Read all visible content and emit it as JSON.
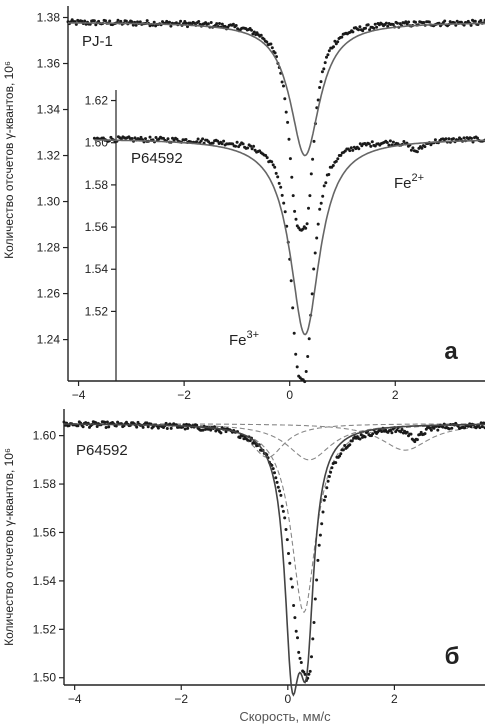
{
  "chart_data": [
    {
      "panel": "а",
      "type": "scatter",
      "xlim": [
        -4.2,
        3.7
      ],
      "x_ticks": [
        "-4",
        "-2",
        "0",
        "2"
      ],
      "x_tick_values": [
        -4,
        -2,
        0,
        2
      ],
      "ylabel": "Количество отсчетов γ-квантов, 10⁶",
      "outer_axis": {
        "ylim": [
          1.222,
          1.385
        ],
        "ticks": [
          "1.38",
          "1.36",
          "1.34",
          "1.32",
          "1.30",
          "1.28",
          "1.26",
          "1.24"
        ],
        "tick_values": [
          1.38,
          1.36,
          1.34,
          1.32,
          1.3,
          1.28,
          1.26,
          1.24
        ]
      },
      "inner_axis": {
        "ylim": [
          1.487,
          1.625
        ],
        "ticks": [
          "1.62",
          "1.60",
          "1.58",
          "1.56",
          "1.54",
          "1.52"
        ],
        "tick_values": [
          1.62,
          1.6,
          1.58,
          1.56,
          1.54,
          1.52
        ]
      },
      "series": [
        {
          "name": "PJ-1",
          "axis": "outer",
          "baseline": 1.378,
          "noise": 0.0012,
          "fit_color": "#666666",
          "fit_lines": [
            {
              "center": 0.29,
              "depth": 0.058,
              "width": 0.34
            }
          ],
          "data_lines": [
            {
              "center": 0.12,
              "depth": 0.062,
              "width": 0.17
            },
            {
              "center": 0.33,
              "depth": 0.062,
              "width": 0.17
            }
          ]
        },
        {
          "name": "P64592",
          "axis": "inner",
          "baseline": 1.602,
          "noise": 0.0012,
          "fit_color": "#666666",
          "fit_lines": [
            {
              "center": 0.29,
              "depth": 0.093,
              "width": 0.34
            }
          ],
          "data_lines": [
            {
              "center": 0.13,
              "depth": 0.064,
              "width": 0.15
            },
            {
              "center": 0.31,
              "depth": 0.085,
              "width": 0.18
            },
            {
              "center": 2.4,
              "depth": 0.005,
              "width": 0.15
            }
          ]
        }
      ],
      "annotations": [
        {
          "text": "Fe",
          "sup": "2+"
        },
        {
          "text": "Fe",
          "sup": "3+"
        }
      ],
      "panel_label": "а"
    },
    {
      "panel": "б",
      "type": "scatter",
      "xlim": [
        -4.2,
        3.7
      ],
      "x_ticks": [
        "-4",
        "-2",
        "0",
        "2"
      ],
      "x_tick_values": [
        -4,
        -2,
        0,
        2
      ],
      "xlabel": "Скорость, мм/с",
      "ylabel": "Количество отсчетов γ-квантов, 10⁶",
      "ylim": [
        1.497,
        1.611
      ],
      "y_ticks": [
        "1.60",
        "1.58",
        "1.56",
        "1.54",
        "1.52",
        "1.50"
      ],
      "y_tick_values": [
        1.6,
        1.58,
        1.56,
        1.54,
        1.52,
        1.5
      ],
      "series": [
        {
          "name": "P64592",
          "baseline": 1.605,
          "noise": 0.0012,
          "fit_color": "#444444",
          "fit_lines": [
            {
              "center": 0.08,
              "depth": 0.088,
              "width": 0.17
            },
            {
              "center": 0.35,
              "depth": 0.08,
              "width": 0.17
            }
          ],
          "data_lines": [
            {
              "center": 0.22,
              "depth": 0.074,
              "width": 0.26
            },
            {
              "center": 0.42,
              "depth": 0.055,
              "width": 0.16
            },
            {
              "center": 2.4,
              "depth": 0.005,
              "width": 0.15
            }
          ]
        }
      ],
      "components": [
        {
          "center": 0.3,
          "depth": 0.078,
          "width": 0.28
        },
        {
          "center": 0.4,
          "depth": 0.015,
          "width": 0.5
        },
        {
          "center": -0.38,
          "depth": 0.014,
          "width": 0.38
        },
        {
          "center": 2.2,
          "depth": 0.011,
          "width": 0.55
        }
      ],
      "panel_label": "б"
    }
  ]
}
